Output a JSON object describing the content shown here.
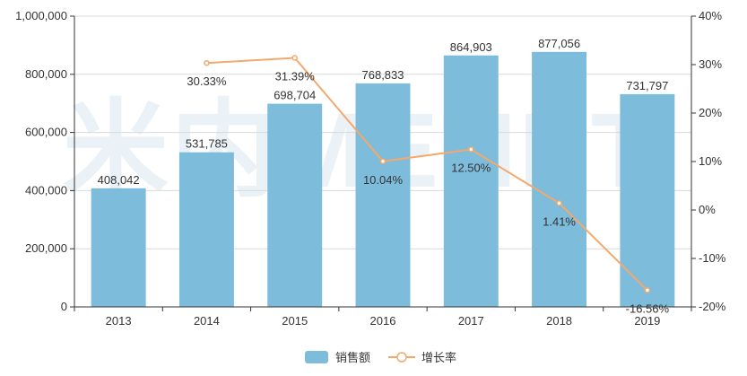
{
  "watermark": {
    "text": "米内MENET"
  },
  "chart_data": {
    "type": "bar",
    "categories": [
      "2013",
      "2014",
      "2015",
      "2016",
      "2017",
      "2018",
      "2019"
    ],
    "series": [
      {
        "name": "销售额",
        "type": "bar",
        "axis": "left",
        "values": [
          408042,
          531785,
          698704,
          768833,
          864903,
          877056,
          731797
        ],
        "labels": [
          "408,042",
          "531,785",
          "698,704",
          "768,833",
          "864,903",
          "877,056",
          "731,797"
        ],
        "color": "#7dbcdb"
      },
      {
        "name": "增长率",
        "type": "line",
        "axis": "right",
        "values": [
          null,
          30.33,
          31.39,
          10.04,
          12.5,
          1.41,
          -16.56
        ],
        "labels": [
          "",
          "30.33%",
          "31.39%",
          "10.04%",
          "12.50%",
          "1.41%",
          "-16.56%"
        ],
        "color": "#f4a86c"
      }
    ],
    "y_left": {
      "ylim": [
        0,
        1000000
      ],
      "ticks": [
        0,
        200000,
        400000,
        600000,
        800000,
        1000000
      ],
      "tick_labels": [
        "0",
        "200,000",
        "400,000",
        "600,000",
        "800,000",
        "1,000,000"
      ]
    },
    "y_right": {
      "ylim": [
        -20,
        40
      ],
      "ticks": [
        -20,
        -10,
        0,
        10,
        20,
        30,
        40
      ],
      "tick_labels": [
        "-20%",
        "-10%",
        "0%",
        "10%",
        "20%",
        "30%",
        "40%"
      ]
    },
    "grid": true,
    "legend": {
      "position": "bottom-center",
      "items": [
        "销售额",
        "增长率"
      ]
    },
    "title": "",
    "xlabel": "",
    "ylabel": ""
  }
}
